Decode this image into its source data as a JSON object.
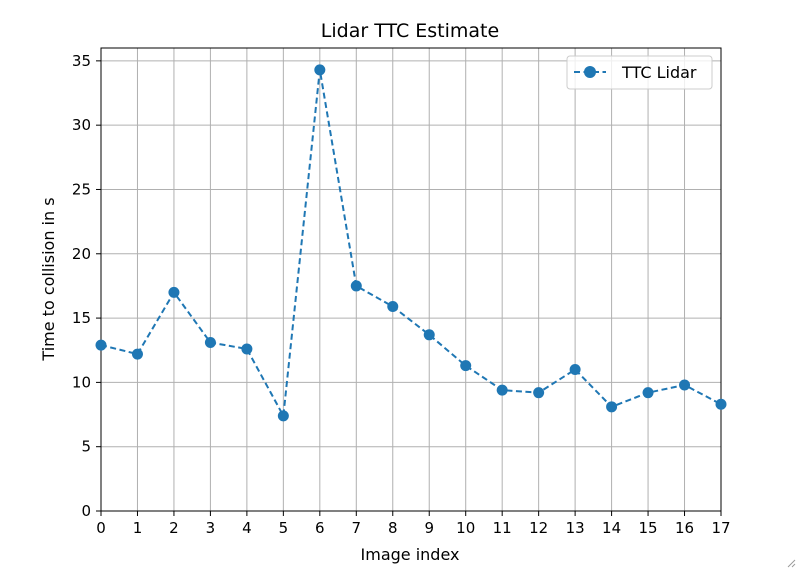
{
  "chart_data": {
    "type": "line",
    "title": "Lidar TTC Estimate",
    "xlabel": "Image index",
    "ylabel": "Time to collision in s",
    "x": [
      0,
      1,
      2,
      3,
      4,
      5,
      6,
      7,
      8,
      9,
      10,
      11,
      12,
      13,
      14,
      15,
      16,
      17
    ],
    "series": [
      {
        "name": "TTC Lidar",
        "values": [
          12.9,
          12.2,
          17.0,
          13.1,
          12.6,
          7.4,
          34.3,
          17.5,
          15.9,
          13.7,
          11.3,
          9.4,
          9.2,
          11.0,
          8.1,
          9.2,
          9.8,
          8.3
        ],
        "color": "#1f77b4",
        "line_style": "dashed",
        "marker": "circle"
      }
    ],
    "xlim": [
      0,
      17
    ],
    "ylim": [
      0,
      36
    ],
    "xticks": [
      0,
      1,
      2,
      3,
      4,
      5,
      6,
      7,
      8,
      9,
      10,
      11,
      12,
      13,
      14,
      15,
      16,
      17
    ],
    "yticks": [
      0,
      5,
      10,
      15,
      20,
      25,
      30,
      35
    ],
    "grid": true,
    "legend_position": "top-right"
  }
}
